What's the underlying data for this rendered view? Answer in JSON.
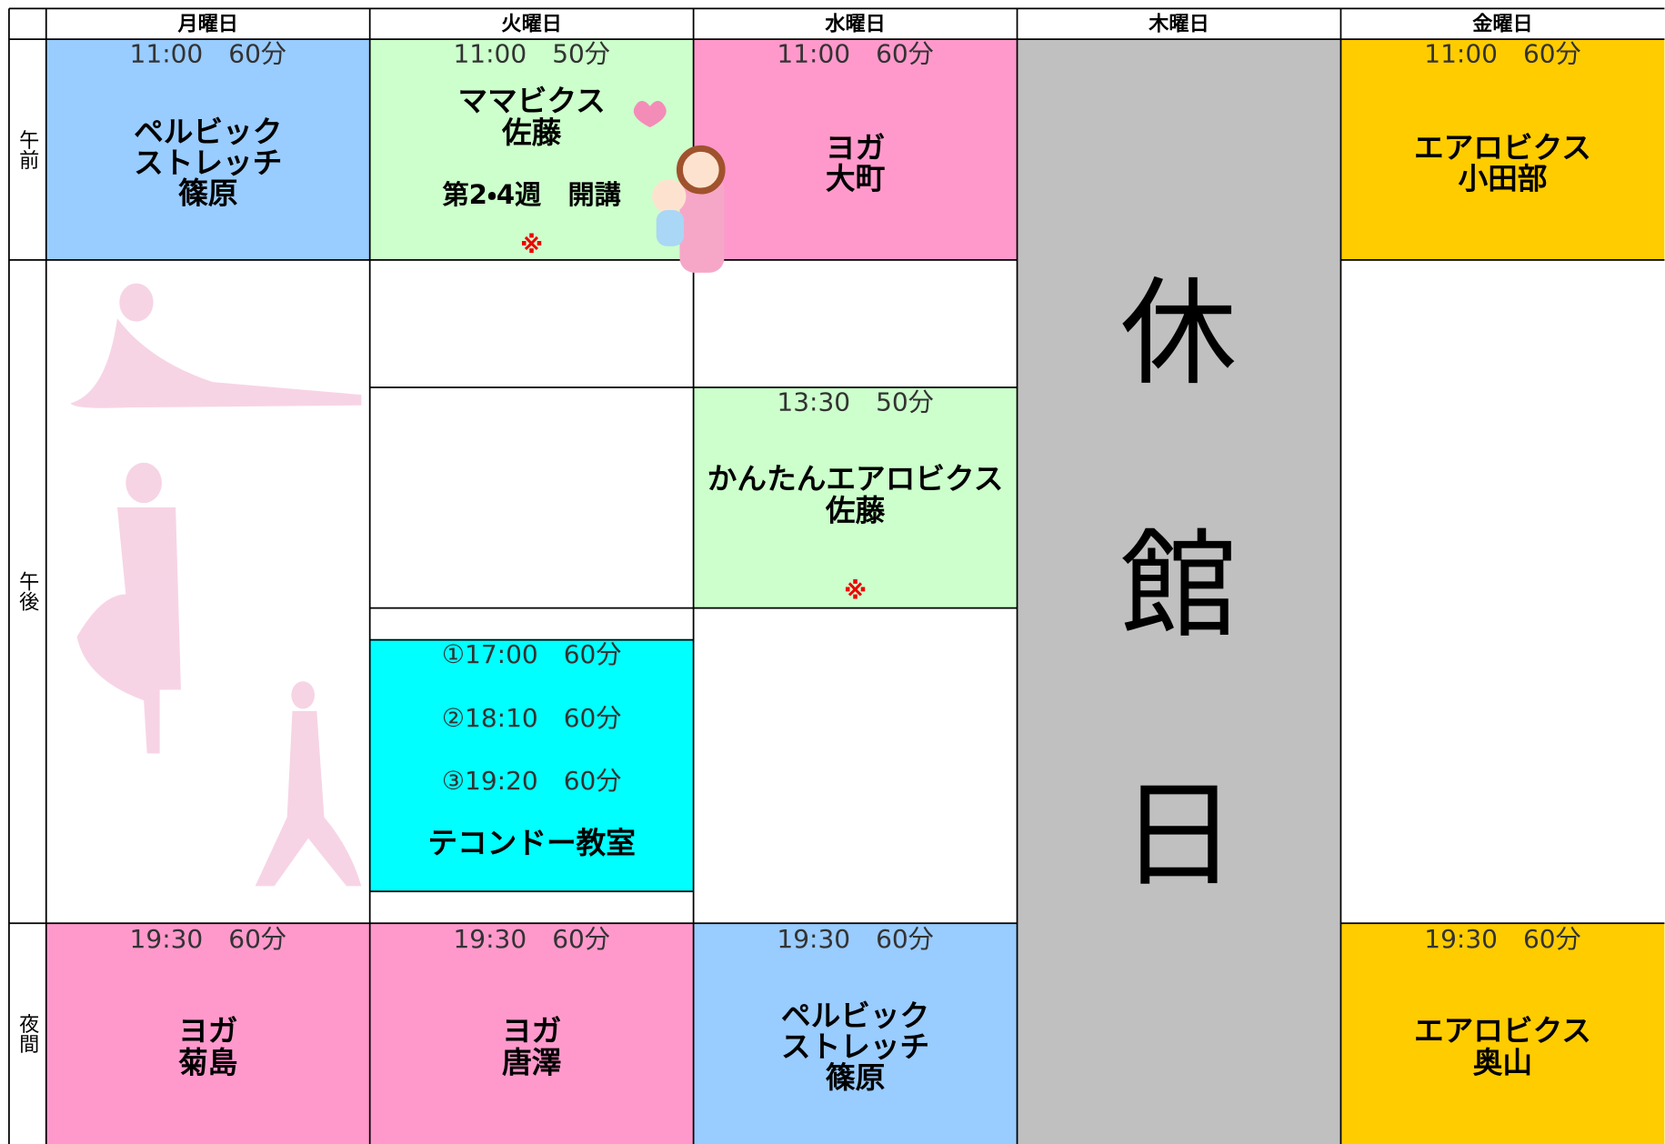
{
  "header": {
    "days": [
      "月曜日",
      "火曜日",
      "水曜日",
      "木曜日",
      "金曜日"
    ]
  },
  "periods": [
    "午前",
    "午後",
    "夜間"
  ],
  "closed_day": {
    "chars": [
      "休",
      "館",
      "日"
    ]
  },
  "classes": [
    {
      "time": "11:00　60分",
      "lines": [
        "ペルビック",
        "ストレッチ",
        "篠原"
      ]
    },
    {
      "time": "11:00　50分",
      "lines": [
        "ママビクス",
        "佐藤"
      ],
      "schedule": "第2・4週　開講",
      "note": "※"
    },
    {
      "time": "11:00　60分",
      "lines": [
        "ヨガ",
        "大町"
      ]
    },
    {
      "time": "11:00　60分",
      "lines": [
        "エアロビクス",
        "小田部"
      ]
    },
    {
      "time": "13:30　50分",
      "lines": [
        "かんたんエアロビクス",
        "佐藤"
      ],
      "note": "※"
    },
    {
      "times": [
        "①17:00　60分",
        "②18:10　60分",
        "③19:20　60分"
      ],
      "lines": [
        "テコンドー教室"
      ]
    },
    {
      "time": "19:30　60分",
      "lines": [
        "ヨガ",
        "菊島"
      ]
    },
    {
      "time": "19:30　60分",
      "lines": [
        "ヨガ",
        "唐澤"
      ]
    },
    {
      "time": "19:30　60分",
      "lines": [
        "ペルビック",
        "ストレッチ",
        "篠原"
      ]
    },
    {
      "time": "19:30　60分",
      "lines": [
        "エアロビクス",
        "奥山"
      ]
    }
  ]
}
